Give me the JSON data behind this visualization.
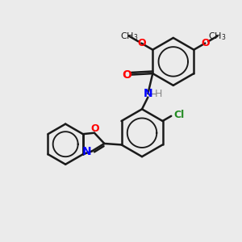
{
  "bg_color": "#ebebeb",
  "bond_color": "#1a1a1a",
  "bond_width": 1.8,
  "font_size": 9,
  "figsize": [
    3.0,
    3.0
  ],
  "dpi": 100,
  "xlim": [
    0,
    10
  ],
  "ylim": [
    0,
    10
  ]
}
